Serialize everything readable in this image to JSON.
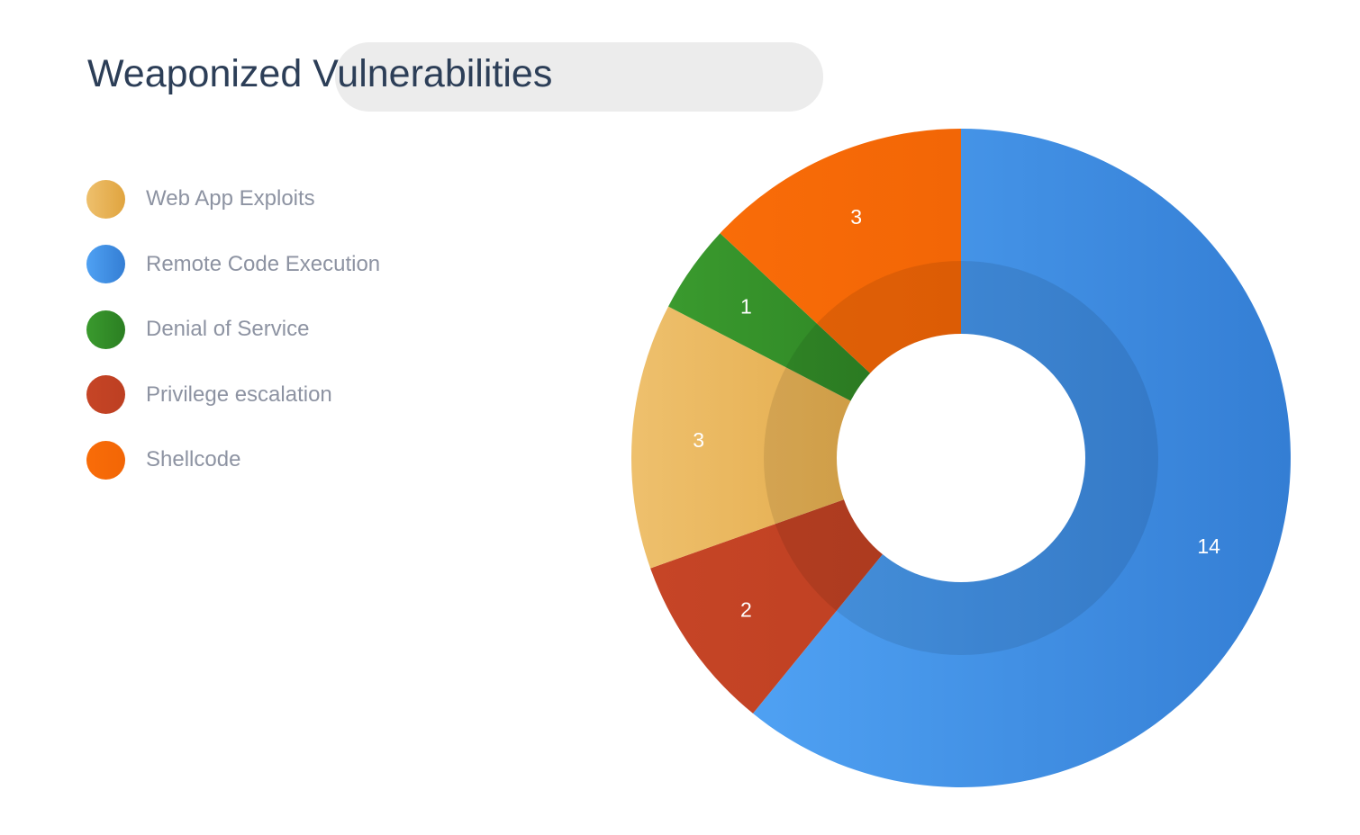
{
  "chart_data": {
    "type": "pie",
    "variant": "donut",
    "title": "Weaponized Vulnerabilities",
    "categories": [
      "Web App Exploits",
      "Remote Code Execution",
      "Denial of Service",
      "Privilege escalation",
      "Shellcode"
    ],
    "values": [
      3,
      14,
      1,
      2,
      3
    ],
    "slice_order_clockwise_from_top": [
      "Remote Code Execution",
      "Privilege escalation",
      "Web App Exploits",
      "Denial of Service",
      "Shellcode"
    ],
    "colors": {
      "Web App Exploits": [
        "#eec06d",
        "#e0a43f"
      ],
      "Remote Code Execution": [
        "#4fa1f3",
        "#347ed4"
      ],
      "Denial of Service": [
        "#3a9a2e",
        "#2b7f22"
      ],
      "Privilege escalation": [
        "#c64526",
        "#bd3f22"
      ],
      "Shellcode": [
        "#f96c08",
        "#f26606"
      ]
    },
    "legend_position": "left",
    "grid": false
  }
}
